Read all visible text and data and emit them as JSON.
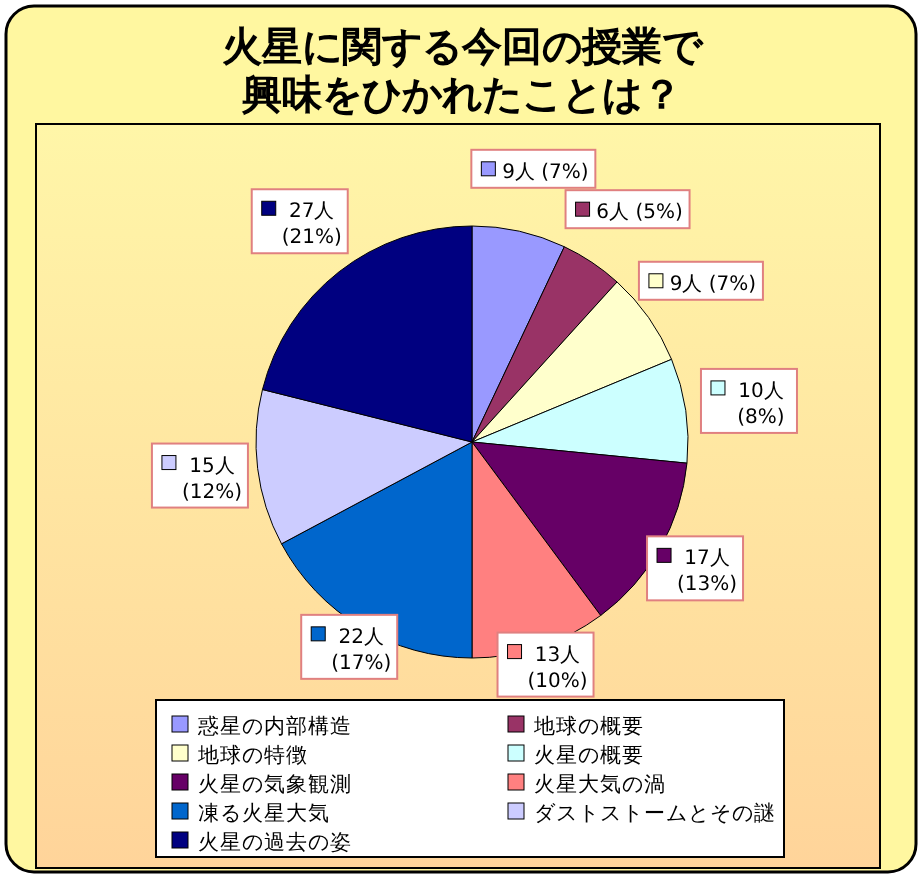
{
  "chart_data": {
    "type": "pie",
    "title": "火星に関する今回の授業で興味をひかれたことは？",
    "categories": [
      "惑星の内部構造",
      "地球の概要",
      "地球の特徴",
      "火星の概要",
      "火星の気象観測",
      "火星大気の渦",
      "凍る火星大気",
      "ダストストームとその謎",
      "火星の過去の姿"
    ],
    "values": [
      9,
      6,
      9,
      10,
      17,
      13,
      22,
      15,
      27
    ],
    "value_labels": [
      "9人 (7%)",
      "6人 (5%)",
      "9人 (7%)",
      "10人 (8%)",
      "17人 (13%)",
      "13人 (10%)",
      "22人 (17%)",
      "15人 (12%)",
      "27人 (21%)"
    ],
    "colors": [
      "#9999ff",
      "#993366",
      "#ffffcc",
      "#ccffff",
      "#660066",
      "#ff8080",
      "#0066cc",
      "#ccccff",
      "#000080"
    ],
    "legend": "bottom"
  }
}
